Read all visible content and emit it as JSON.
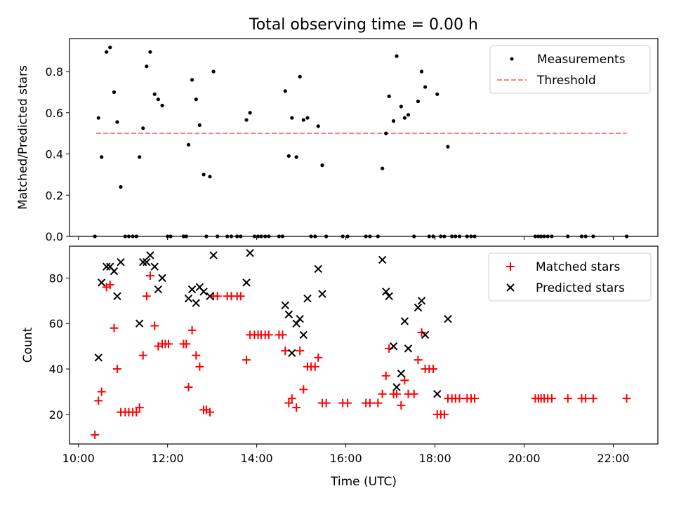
{
  "title": "Total observing time = 0.00 h",
  "chart_data": [
    {
      "type": "scatter",
      "ylabel": "Matched/Predicted stars",
      "xlim": [
        9.8,
        23.0
      ],
      "ylim": [
        0,
        0.96
      ],
      "yticks": [
        0.0,
        0.2,
        0.4,
        0.6,
        0.8
      ],
      "ytick_labels": [
        "0.0",
        "0.2",
        "0.4",
        "0.6",
        "0.8"
      ],
      "legend": {
        "position": "upper right",
        "entries": [
          "Measurements",
          "Threshold"
        ]
      },
      "threshold": {
        "name": "Threshold",
        "value": 0.5,
        "x_range": [
          10.4,
          22.3
        ],
        "color": "#ff7f7f",
        "style": "dashed"
      },
      "series": [
        {
          "name": "Measurements",
          "marker": "dot",
          "color": "#000000",
          "points": [
            [
              10.37,
              0.0
            ],
            [
              10.45,
              0.575
            ],
            [
              10.52,
              0.385
            ],
            [
              10.63,
              0.895
            ],
            [
              10.71,
              0.917
            ],
            [
              10.8,
              0.7
            ],
            [
              10.87,
              0.555
            ],
            [
              10.95,
              0.24
            ],
            [
              11.05,
              0.0
            ],
            [
              11.13,
              0.0
            ],
            [
              11.22,
              0.0
            ],
            [
              11.3,
              0.0
            ],
            [
              11.37,
              0.385
            ],
            [
              11.45,
              0.525
            ],
            [
              11.53,
              0.825
            ],
            [
              11.61,
              0.895
            ],
            [
              11.71,
              0.69
            ],
            [
              11.79,
              0.665
            ],
            [
              11.88,
              0.635
            ],
            [
              12.0,
              0.0
            ],
            [
              12.07,
              0.0
            ],
            [
              12.36,
              0.0
            ],
            [
              12.42,
              0.0
            ],
            [
              12.47,
              0.445
            ],
            [
              12.55,
              0.76
            ],
            [
              12.64,
              0.665
            ],
            [
              12.72,
              0.54
            ],
            [
              12.81,
              0.3
            ],
            [
              12.87,
              0.0
            ],
            [
              12.95,
              0.29
            ],
            [
              13.03,
              0.8
            ],
            [
              13.12,
              0.0
            ],
            [
              13.34,
              0.0
            ],
            [
              13.43,
              0.0
            ],
            [
              13.56,
              0.0
            ],
            [
              13.64,
              0.0
            ],
            [
              13.77,
              0.565
            ],
            [
              13.85,
              0.6
            ],
            [
              13.95,
              0.0
            ],
            [
              14.03,
              0.0
            ],
            [
              14.1,
              0.0
            ],
            [
              14.19,
              0.0
            ],
            [
              14.27,
              0.0
            ],
            [
              14.5,
              0.0
            ],
            [
              14.58,
              0.0
            ],
            [
              14.64,
              0.705
            ],
            [
              14.72,
              0.39
            ],
            [
              14.79,
              0.575
            ],
            [
              14.89,
              0.385
            ],
            [
              14.97,
              0.775
            ],
            [
              15.05,
              0.565
            ],
            [
              15.14,
              0.575
            ],
            [
              15.22,
              0.0
            ],
            [
              15.31,
              0.0
            ],
            [
              15.38,
              0.535
            ],
            [
              15.47,
              0.345
            ],
            [
              15.56,
              0.0
            ],
            [
              15.93,
              0.0
            ],
            [
              16.04,
              0.0
            ],
            [
              16.45,
              0.0
            ],
            [
              16.54,
              0.0
            ],
            [
              16.72,
              0.0
            ],
            [
              16.82,
              0.33
            ],
            [
              16.9,
              0.5
            ],
            [
              16.97,
              0.68
            ],
            [
              17.07,
              0.56
            ],
            [
              17.14,
              0.875
            ],
            [
              17.24,
              0.63
            ],
            [
              17.32,
              0.575
            ],
            [
              17.4,
              0.59
            ],
            [
              17.53,
              0.0
            ],
            [
              17.62,
              0.655
            ],
            [
              17.7,
              0.8
            ],
            [
              17.78,
              0.725
            ],
            [
              17.87,
              0.0
            ],
            [
              17.96,
              0.0
            ],
            [
              18.05,
              0.69
            ],
            [
              18.13,
              0.0
            ],
            [
              18.21,
              0.0
            ],
            [
              18.29,
              0.435
            ],
            [
              18.38,
              0.0
            ],
            [
              18.46,
              0.0
            ],
            [
              18.55,
              0.0
            ],
            [
              18.72,
              0.0
            ],
            [
              18.81,
              0.0
            ],
            [
              18.89,
              0.0
            ],
            [
              20.25,
              0.0
            ],
            [
              20.32,
              0.0
            ],
            [
              20.38,
              0.0
            ],
            [
              20.45,
              0.0
            ],
            [
              20.53,
              0.0
            ],
            [
              20.62,
              0.0
            ],
            [
              20.98,
              0.0
            ],
            [
              21.29,
              0.0
            ],
            [
              21.38,
              0.0
            ],
            [
              21.55,
              0.0
            ],
            [
              22.3,
              0.0
            ]
          ]
        }
      ]
    },
    {
      "type": "scatter",
      "xlabel": "Time (UTC)",
      "ylabel": "Count",
      "xlim": [
        9.8,
        23.0
      ],
      "ylim": [
        7,
        94
      ],
      "xticks": [
        10,
        12,
        14,
        16,
        18,
        20,
        22
      ],
      "xtick_labels": [
        "10:00",
        "12:00",
        "14:00",
        "16:00",
        "18:00",
        "20:00",
        "22:00"
      ],
      "yticks": [
        20,
        40,
        60,
        80
      ],
      "ytick_labels": [
        "20",
        "40",
        "60",
        "80"
      ],
      "legend": {
        "position": "upper right",
        "entries": [
          "Matched stars",
          "Predicted stars"
        ]
      },
      "series": [
        {
          "name": "Matched stars",
          "marker": "plus",
          "color": "#ff0000",
          "points": [
            [
              10.37,
              11
            ],
            [
              10.45,
              26
            ],
            [
              10.52,
              30
            ],
            [
              10.63,
              76
            ],
            [
              10.71,
              77
            ],
            [
              10.8,
              58
            ],
            [
              10.87,
              40
            ],
            [
              10.95,
              21
            ],
            [
              11.05,
              21
            ],
            [
              11.13,
              21
            ],
            [
              11.22,
              21
            ],
            [
              11.3,
              21
            ],
            [
              11.37,
              23
            ],
            [
              11.45,
              46
            ],
            [
              11.53,
              72
            ],
            [
              11.61,
              81
            ],
            [
              11.71,
              59
            ],
            [
              11.79,
              50
            ],
            [
              11.88,
              51
            ],
            [
              11.95,
              51
            ],
            [
              12.02,
              51
            ],
            [
              12.36,
              51
            ],
            [
              12.42,
              51
            ],
            [
              12.47,
              32
            ],
            [
              12.55,
              57
            ],
            [
              12.64,
              46
            ],
            [
              12.72,
              41
            ],
            [
              12.81,
              22
            ],
            [
              12.87,
              22
            ],
            [
              12.95,
              21
            ],
            [
              13.03,
              72
            ],
            [
              13.12,
              72
            ],
            [
              13.34,
              72
            ],
            [
              13.43,
              72
            ],
            [
              13.56,
              72
            ],
            [
              13.64,
              72
            ],
            [
              13.77,
              44
            ],
            [
              13.85,
              55
            ],
            [
              13.95,
              55
            ],
            [
              14.03,
              55
            ],
            [
              14.1,
              55
            ],
            [
              14.19,
              55
            ],
            [
              14.27,
              55
            ],
            [
              14.5,
              55
            ],
            [
              14.58,
              55
            ],
            [
              14.64,
              48
            ],
            [
              14.72,
              25
            ],
            [
              14.79,
              27
            ],
            [
              14.89,
              23
            ],
            [
              14.97,
              48
            ],
            [
              15.05,
              31
            ],
            [
              15.14,
              41
            ],
            [
              15.22,
              41
            ],
            [
              15.31,
              41
            ],
            [
              15.38,
              45
            ],
            [
              15.47,
              25
            ],
            [
              15.56,
              25
            ],
            [
              15.93,
              25
            ],
            [
              16.04,
              25
            ],
            [
              16.45,
              25
            ],
            [
              16.54,
              25
            ],
            [
              16.72,
              25
            ],
            [
              16.82,
              29
            ],
            [
              16.9,
              37
            ],
            [
              16.97,
              49
            ],
            [
              17.07,
              29
            ],
            [
              17.14,
              29
            ],
            [
              17.24,
              24
            ],
            [
              17.32,
              35
            ],
            [
              17.4,
              29
            ],
            [
              17.53,
              29
            ],
            [
              17.62,
              44
            ],
            [
              17.7,
              56
            ],
            [
              17.78,
              40
            ],
            [
              17.87,
              40
            ],
            [
              17.96,
              40
            ],
            [
              18.05,
              20
            ],
            [
              18.13,
              20
            ],
            [
              18.21,
              20
            ],
            [
              18.29,
              27
            ],
            [
              18.38,
              27
            ],
            [
              18.46,
              27
            ],
            [
              18.55,
              27
            ],
            [
              18.72,
              27
            ],
            [
              18.81,
              27
            ],
            [
              18.89,
              27
            ],
            [
              20.25,
              27
            ],
            [
              20.32,
              27
            ],
            [
              20.38,
              27
            ],
            [
              20.45,
              27
            ],
            [
              20.53,
              27
            ],
            [
              20.62,
              27
            ],
            [
              20.98,
              27
            ],
            [
              21.29,
              27
            ],
            [
              21.38,
              27
            ],
            [
              21.55,
              27
            ],
            [
              22.3,
              27
            ]
          ]
        },
        {
          "name": "Predicted stars",
          "marker": "x",
          "color": "#000000",
          "points": [
            [
              10.45,
              45
            ],
            [
              10.52,
              78
            ],
            [
              10.63,
              85
            ],
            [
              10.71,
              85
            ],
            [
              10.8,
              83
            ],
            [
              10.87,
              72
            ],
            [
              10.95,
              87
            ],
            [
              11.37,
              60
            ],
            [
              11.45,
              87
            ],
            [
              11.53,
              87
            ],
            [
              11.61,
              90
            ],
            [
              11.71,
              85
            ],
            [
              11.79,
              75
            ],
            [
              11.88,
              80
            ],
            [
              12.47,
              71
            ],
            [
              12.55,
              75
            ],
            [
              12.64,
              69
            ],
            [
              12.72,
              76
            ],
            [
              12.81,
              74
            ],
            [
              12.95,
              72
            ],
            [
              13.03,
              90
            ],
            [
              13.77,
              78
            ],
            [
              13.85,
              91
            ],
            [
              14.64,
              68
            ],
            [
              14.72,
              64
            ],
            [
              14.79,
              47
            ],
            [
              14.89,
              60
            ],
            [
              14.97,
              62
            ],
            [
              15.05,
              55
            ],
            [
              15.14,
              71
            ],
            [
              15.38,
              84
            ],
            [
              15.47,
              73
            ],
            [
              16.82,
              88
            ],
            [
              16.9,
              74
            ],
            [
              16.97,
              72
            ],
            [
              17.07,
              50
            ],
            [
              17.14,
              32
            ],
            [
              17.24,
              38
            ],
            [
              17.32,
              61
            ],
            [
              17.4,
              49
            ],
            [
              17.62,
              67
            ],
            [
              17.7,
              70
            ],
            [
              17.78,
              55
            ],
            [
              18.05,
              29
            ],
            [
              18.29,
              62
            ]
          ]
        }
      ]
    }
  ]
}
